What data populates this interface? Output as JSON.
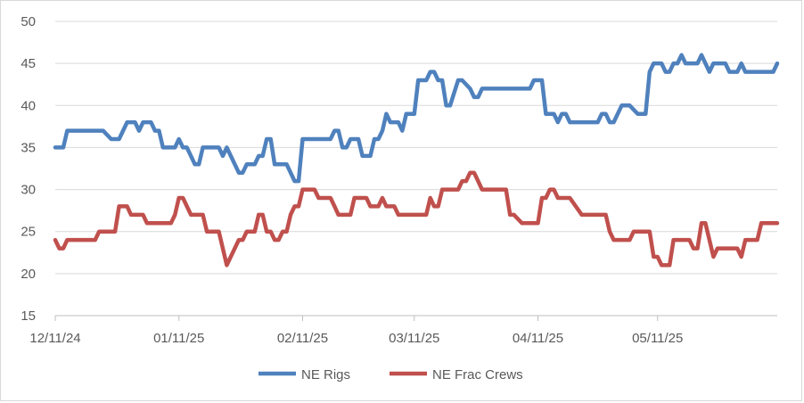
{
  "chart_data": {
    "type": "line",
    "title": "",
    "xlabel": "",
    "ylabel": "",
    "ylim": [
      15,
      50
    ],
    "yticks": [
      15,
      20,
      25,
      30,
      35,
      40,
      45,
      50
    ],
    "xlim": [
      "2024-12-11",
      "2025-06-10"
    ],
    "xticks": [
      {
        "date": "2024-12-11",
        "label": "12/11/24"
      },
      {
        "date": "2025-01-11",
        "label": "01/11/25"
      },
      {
        "date": "2025-02-11",
        "label": "02/11/25"
      },
      {
        "date": "2025-03-11",
        "label": "03/11/25"
      },
      {
        "date": "2025-04-11",
        "label": "04/11/25"
      },
      {
        "date": "2025-05-11",
        "label": "05/11/25"
      }
    ],
    "grid": "horizontal",
    "legend": "bottom",
    "series": [
      {
        "name": "NE Rigs",
        "color": "#4f81bd",
        "points": [
          [
            "2024-12-11",
            35
          ],
          [
            "2024-12-13",
            35
          ],
          [
            "2024-12-14",
            37
          ],
          [
            "2024-12-23",
            37
          ],
          [
            "2024-12-25",
            36
          ],
          [
            "2024-12-27",
            36
          ],
          [
            "2024-12-29",
            38
          ],
          [
            "2024-12-31",
            38
          ],
          [
            "2025-01-01",
            37
          ],
          [
            "2025-01-02",
            38
          ],
          [
            "2025-01-04",
            38
          ],
          [
            "2025-01-05",
            37
          ],
          [
            "2025-01-06",
            37
          ],
          [
            "2025-01-07",
            35
          ],
          [
            "2025-01-10",
            35
          ],
          [
            "2025-01-11",
            36
          ],
          [
            "2025-01-12",
            35
          ],
          [
            "2025-01-13",
            35
          ],
          [
            "2025-01-15",
            33
          ],
          [
            "2025-01-16",
            33
          ],
          [
            "2025-01-17",
            35
          ],
          [
            "2025-01-21",
            35
          ],
          [
            "2025-01-22",
            34
          ],
          [
            "2025-01-23",
            35
          ],
          [
            "2025-01-26",
            32
          ],
          [
            "2025-01-27",
            32
          ],
          [
            "2025-01-28",
            33
          ],
          [
            "2025-01-30",
            33
          ],
          [
            "2025-01-31",
            34
          ],
          [
            "2025-02-01",
            34
          ],
          [
            "2025-02-02",
            36
          ],
          [
            "2025-02-03",
            36
          ],
          [
            "2025-02-04",
            33
          ],
          [
            "2025-02-07",
            33
          ],
          [
            "2025-02-09",
            31
          ],
          [
            "2025-02-10",
            31
          ],
          [
            "2025-02-11",
            36
          ],
          [
            "2025-02-18",
            36
          ],
          [
            "2025-02-19",
            37
          ],
          [
            "2025-02-20",
            37
          ],
          [
            "2025-02-21",
            35
          ],
          [
            "2025-02-22",
            35
          ],
          [
            "2025-02-23",
            36
          ],
          [
            "2025-02-25",
            36
          ],
          [
            "2025-02-26",
            34
          ],
          [
            "2025-02-28",
            34
          ],
          [
            "2025-03-01",
            36
          ],
          [
            "2025-03-02",
            36
          ],
          [
            "2025-03-03",
            37
          ],
          [
            "2025-03-04",
            39
          ],
          [
            "2025-03-05",
            38
          ],
          [
            "2025-03-07",
            38
          ],
          [
            "2025-03-08",
            37
          ],
          [
            "2025-03-09",
            39
          ],
          [
            "2025-03-11",
            39
          ],
          [
            "2025-03-12",
            43
          ],
          [
            "2025-03-14",
            43
          ],
          [
            "2025-03-15",
            44
          ],
          [
            "2025-03-16",
            44
          ],
          [
            "2025-03-17",
            43
          ],
          [
            "2025-03-18",
            43
          ],
          [
            "2025-03-19",
            40
          ],
          [
            "2025-03-20",
            40
          ],
          [
            "2025-03-22",
            43
          ],
          [
            "2025-03-23",
            43
          ],
          [
            "2025-03-25",
            42
          ],
          [
            "2025-03-26",
            41
          ],
          [
            "2025-03-27",
            41
          ],
          [
            "2025-03-28",
            42
          ],
          [
            "2025-04-09",
            42
          ],
          [
            "2025-04-10",
            43
          ],
          [
            "2025-04-12",
            43
          ],
          [
            "2025-04-13",
            39
          ],
          [
            "2025-04-15",
            39
          ],
          [
            "2025-04-16",
            38
          ],
          [
            "2025-04-17",
            39
          ],
          [
            "2025-04-18",
            39
          ],
          [
            "2025-04-19",
            38
          ],
          [
            "2025-04-26",
            38
          ],
          [
            "2025-04-27",
            39
          ],
          [
            "2025-04-28",
            39
          ],
          [
            "2025-04-29",
            38
          ],
          [
            "2025-04-30",
            38
          ],
          [
            "2025-05-01",
            39
          ],
          [
            "2025-05-02",
            40
          ],
          [
            "2025-05-04",
            40
          ],
          [
            "2025-05-06",
            39
          ],
          [
            "2025-05-08",
            39
          ],
          [
            "2025-05-09",
            44
          ],
          [
            "2025-05-10",
            45
          ],
          [
            "2025-05-12",
            45
          ],
          [
            "2025-05-13",
            44
          ],
          [
            "2025-05-14",
            44
          ],
          [
            "2025-05-15",
            45
          ],
          [
            "2025-05-16",
            45
          ],
          [
            "2025-05-17",
            46
          ],
          [
            "2025-05-18",
            45
          ],
          [
            "2025-05-21",
            45
          ],
          [
            "2025-05-22",
            46
          ],
          [
            "2025-05-23",
            45
          ],
          [
            "2025-05-24",
            44
          ],
          [
            "2025-05-25",
            45
          ],
          [
            "2025-05-28",
            45
          ],
          [
            "2025-05-29",
            44
          ],
          [
            "2025-05-31",
            44
          ],
          [
            "2025-06-01",
            45
          ],
          [
            "2025-06-02",
            44
          ],
          [
            "2025-06-09",
            44
          ],
          [
            "2025-06-10",
            45
          ]
        ]
      },
      {
        "name": "NE Frac Crews",
        "color": "#c0504d",
        "points": [
          [
            "2024-12-11",
            24
          ],
          [
            "2024-12-12",
            23
          ],
          [
            "2024-12-13",
            23
          ],
          [
            "2024-12-14",
            24
          ],
          [
            "2024-12-21",
            24
          ],
          [
            "2024-12-22",
            25
          ],
          [
            "2024-12-26",
            25
          ],
          [
            "2024-12-27",
            28
          ],
          [
            "2024-12-29",
            28
          ],
          [
            "2024-12-30",
            27
          ],
          [
            "2025-01-02",
            27
          ],
          [
            "2025-01-03",
            26
          ],
          [
            "2025-01-09",
            26
          ],
          [
            "2025-01-10",
            27
          ],
          [
            "2025-01-11",
            29
          ],
          [
            "2025-01-12",
            29
          ],
          [
            "2025-01-14",
            27
          ],
          [
            "2025-01-17",
            27
          ],
          [
            "2025-01-18",
            25
          ],
          [
            "2025-01-21",
            25
          ],
          [
            "2025-01-23",
            21
          ],
          [
            "2025-01-26",
            24
          ],
          [
            "2025-01-27",
            24
          ],
          [
            "2025-01-28",
            25
          ],
          [
            "2025-01-30",
            25
          ],
          [
            "2025-01-31",
            27
          ],
          [
            "2025-02-01",
            27
          ],
          [
            "2025-02-02",
            25
          ],
          [
            "2025-02-03",
            25
          ],
          [
            "2025-02-04",
            24
          ],
          [
            "2025-02-05",
            24
          ],
          [
            "2025-02-06",
            25
          ],
          [
            "2025-02-07",
            25
          ],
          [
            "2025-02-08",
            27
          ],
          [
            "2025-02-09",
            28
          ],
          [
            "2025-02-10",
            28
          ],
          [
            "2025-02-11",
            30
          ],
          [
            "2025-02-14",
            30
          ],
          [
            "2025-02-15",
            29
          ],
          [
            "2025-02-18",
            29
          ],
          [
            "2025-02-19",
            28
          ],
          [
            "2025-02-20",
            27
          ],
          [
            "2025-02-23",
            27
          ],
          [
            "2025-02-24",
            29
          ],
          [
            "2025-02-27",
            29
          ],
          [
            "2025-02-28",
            28
          ],
          [
            "2025-03-02",
            28
          ],
          [
            "2025-03-03",
            29
          ],
          [
            "2025-03-04",
            28
          ],
          [
            "2025-03-06",
            28
          ],
          [
            "2025-03-07",
            27
          ],
          [
            "2025-03-14",
            27
          ],
          [
            "2025-03-15",
            29
          ],
          [
            "2025-03-16",
            28
          ],
          [
            "2025-03-17",
            28
          ],
          [
            "2025-03-18",
            30
          ],
          [
            "2025-03-22",
            30
          ],
          [
            "2025-03-23",
            31
          ],
          [
            "2025-03-24",
            31
          ],
          [
            "2025-03-25",
            32
          ],
          [
            "2025-03-26",
            32
          ],
          [
            "2025-03-27",
            31
          ],
          [
            "2025-03-28",
            30
          ],
          [
            "2025-04-03",
            30
          ],
          [
            "2025-04-04",
            27
          ],
          [
            "2025-04-05",
            27
          ],
          [
            "2025-04-07",
            26
          ],
          [
            "2025-04-11",
            26
          ],
          [
            "2025-04-12",
            29
          ],
          [
            "2025-04-13",
            29
          ],
          [
            "2025-04-14",
            30
          ],
          [
            "2025-04-15",
            30
          ],
          [
            "2025-04-16",
            29
          ],
          [
            "2025-04-19",
            29
          ],
          [
            "2025-04-22",
            27
          ],
          [
            "2025-04-28",
            27
          ],
          [
            "2025-04-29",
            25
          ],
          [
            "2025-04-30",
            24
          ],
          [
            "2025-05-04",
            24
          ],
          [
            "2025-05-05",
            25
          ],
          [
            "2025-05-09",
            25
          ],
          [
            "2025-05-10",
            22
          ],
          [
            "2025-05-11",
            22
          ],
          [
            "2025-05-12",
            21
          ],
          [
            "2025-05-14",
            21
          ],
          [
            "2025-05-15",
            24
          ],
          [
            "2025-05-19",
            24
          ],
          [
            "2025-05-20",
            23
          ],
          [
            "2025-05-21",
            23
          ],
          [
            "2025-05-22",
            26
          ],
          [
            "2025-05-23",
            26
          ],
          [
            "2025-05-25",
            22
          ],
          [
            "2025-05-26",
            23
          ],
          [
            "2025-05-31",
            23
          ],
          [
            "2025-06-01",
            22
          ],
          [
            "2025-06-02",
            24
          ],
          [
            "2025-06-05",
            24
          ],
          [
            "2025-06-06",
            26
          ],
          [
            "2025-06-10",
            26
          ]
        ]
      }
    ]
  }
}
